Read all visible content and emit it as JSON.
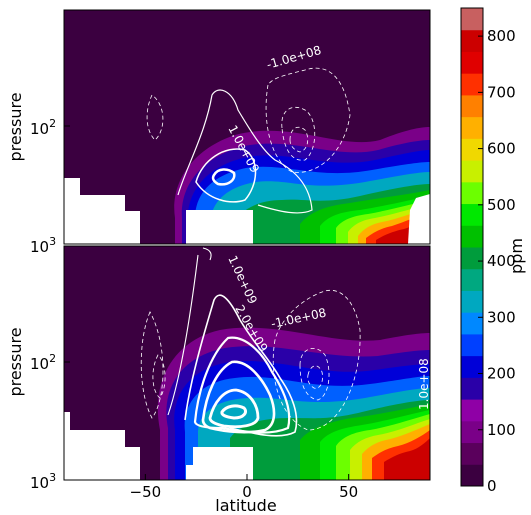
{
  "chart_data": {
    "type": "contour",
    "x_axis": {
      "label": "latitude",
      "lim": [
        -90,
        90
      ],
      "ticks": [
        -50,
        0,
        50
      ],
      "tick_labels": [
        "−50",
        "0",
        "50"
      ]
    },
    "y_axis": {
      "label": "pressure",
      "scale": "log",
      "inverted": true,
      "lim": [
        1000,
        10
      ],
      "tick_labels": [
        {
          "value": 100,
          "base": "10",
          "exp": "2"
        },
        {
          "value": 1000,
          "base": "10",
          "exp": "3"
        }
      ]
    },
    "colorbar": {
      "label": "ppm",
      "min": 0,
      "max": 850,
      "tick_values": [
        0,
        100,
        200,
        300,
        400,
        500,
        600,
        700,
        800
      ],
      "tick_labels": [
        "0",
        "100",
        "200",
        "300",
        "400",
        "500",
        "600",
        "700",
        "800"
      ],
      "colors": [
        "#3b0040",
        "#5a005c",
        "#7a0088",
        "#8f00a6",
        "#2a00a8",
        "#0000d8",
        "#0040ff",
        "#0088ff",
        "#00a8c0",
        "#00a880",
        "#009c3c",
        "#00c000",
        "#00e800",
        "#6cff00",
        "#c8f000",
        "#f0d800",
        "#ffb000",
        "#ff8000",
        "#ff3000",
        "#e00000",
        "#cc0000",
        "#c86060"
      ]
    },
    "panels": [
      {
        "panel": "top",
        "contour_labels": [
          "-1.0e+08",
          "1.0e+09"
        ]
      },
      {
        "panel": "bottom",
        "contour_labels": [
          "1.0e+09",
          "2.0e+09",
          "-1.0e+08",
          "1.0e+08"
        ]
      }
    ]
  }
}
